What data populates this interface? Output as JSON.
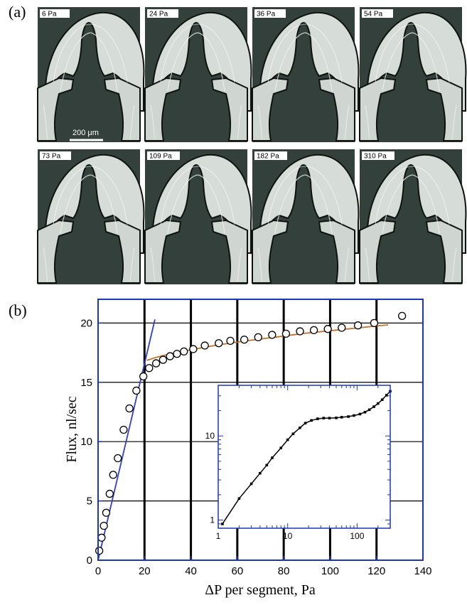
{
  "figure": {
    "panel_a_label": "(a)",
    "panel_b_label": "(b)"
  },
  "micrographs": {
    "scale_bar_label": "200 μm",
    "tiles": [
      {
        "label": "6 Pa"
      },
      {
        "label": "24 Pa"
      },
      {
        "label": "36 Pa"
      },
      {
        "label": "54 Pa"
      },
      {
        "label": "73 Pa"
      },
      {
        "label": "109 Pa"
      },
      {
        "label": "182 Pa"
      },
      {
        "label": "310 Pa"
      }
    ]
  },
  "colors": {
    "frame": "#1c36b4",
    "blue_fit": "#2f3fc8",
    "orange_fit": "#c0702a",
    "grid": "#000000",
    "background_dark": "#33403c",
    "channel_light": "#d6dcd8"
  },
  "chart_data": [
    {
      "type": "scatter",
      "title": "",
      "xlabel": "ΔP per segment, Pa",
      "ylabel": "Flux, nl/sec",
      "xlim": [
        0,
        140
      ],
      "ylim": [
        0,
        22
      ],
      "xticks": [
        0,
        20,
        40,
        60,
        80,
        100,
        120,
        140
      ],
      "yticks": [
        0,
        5,
        10,
        15,
        20
      ],
      "grid": true,
      "series": [
        {
          "marker": "open-circle",
          "x": [
            0.5,
            1.5,
            2.5,
            3.5,
            5,
            6.5,
            8.5,
            11,
            13.5,
            16.5,
            19.5,
            22,
            25,
            28,
            31,
            34,
            37,
            41,
            46,
            52,
            57,
            63,
            69,
            75,
            81,
            87,
            93,
            99,
            105,
            112,
            119,
            131
          ],
          "y": [
            0.8,
            1.9,
            2.9,
            4.0,
            5.6,
            7.2,
            8.6,
            11.0,
            12.8,
            14.3,
            15.5,
            16.2,
            16.6,
            16.9,
            17.2,
            17.4,
            17.6,
            17.8,
            18.1,
            18.3,
            18.5,
            18.6,
            18.8,
            19.0,
            19.1,
            19.3,
            19.4,
            19.5,
            19.6,
            19.8,
            20.0,
            20.6
          ]
        },
        {
          "style": "line",
          "color": "blue",
          "x": [
            0,
            24.5
          ],
          "y": [
            0,
            20.3
          ]
        },
        {
          "style": "line",
          "color": "orange",
          "x": [
            21,
            25,
            30,
            40,
            50,
            60,
            70,
            80,
            90,
            100,
            110,
            120,
            125
          ],
          "y": [
            16.85,
            17.1,
            17.35,
            17.75,
            18.1,
            18.4,
            18.65,
            18.9,
            19.15,
            19.35,
            19.55,
            19.75,
            19.85
          ]
        }
      ]
    },
    {
      "type": "line",
      "title": "",
      "xscale": "log",
      "yscale": "log",
      "xlim": [
        1,
        300
      ],
      "ylim": [
        0.8,
        40
      ],
      "xticks": [
        1,
        10,
        100
      ],
      "yticks": [
        1,
        10
      ],
      "series": [
        {
          "marker": "filled-square",
          "x": [
            1.15,
            2,
            3,
            4,
            5,
            6,
            8,
            10,
            12,
            15,
            18,
            22,
            27,
            33,
            40,
            50,
            60,
            75,
            90,
            110,
            130,
            150,
            175,
            200,
            230,
            265,
            300
          ],
          "y": [
            0.9,
            1.8,
            2.7,
            3.6,
            4.5,
            5.5,
            7.2,
            9.0,
            10.6,
            12.5,
            14.2,
            15.3,
            16.0,
            16.3,
            16.3,
            16.4,
            16.7,
            17.0,
            17.5,
            18.2,
            19.2,
            20.5,
            22.3,
            24.3,
            27.0,
            30.5,
            34.0
          ]
        }
      ]
    }
  ]
}
